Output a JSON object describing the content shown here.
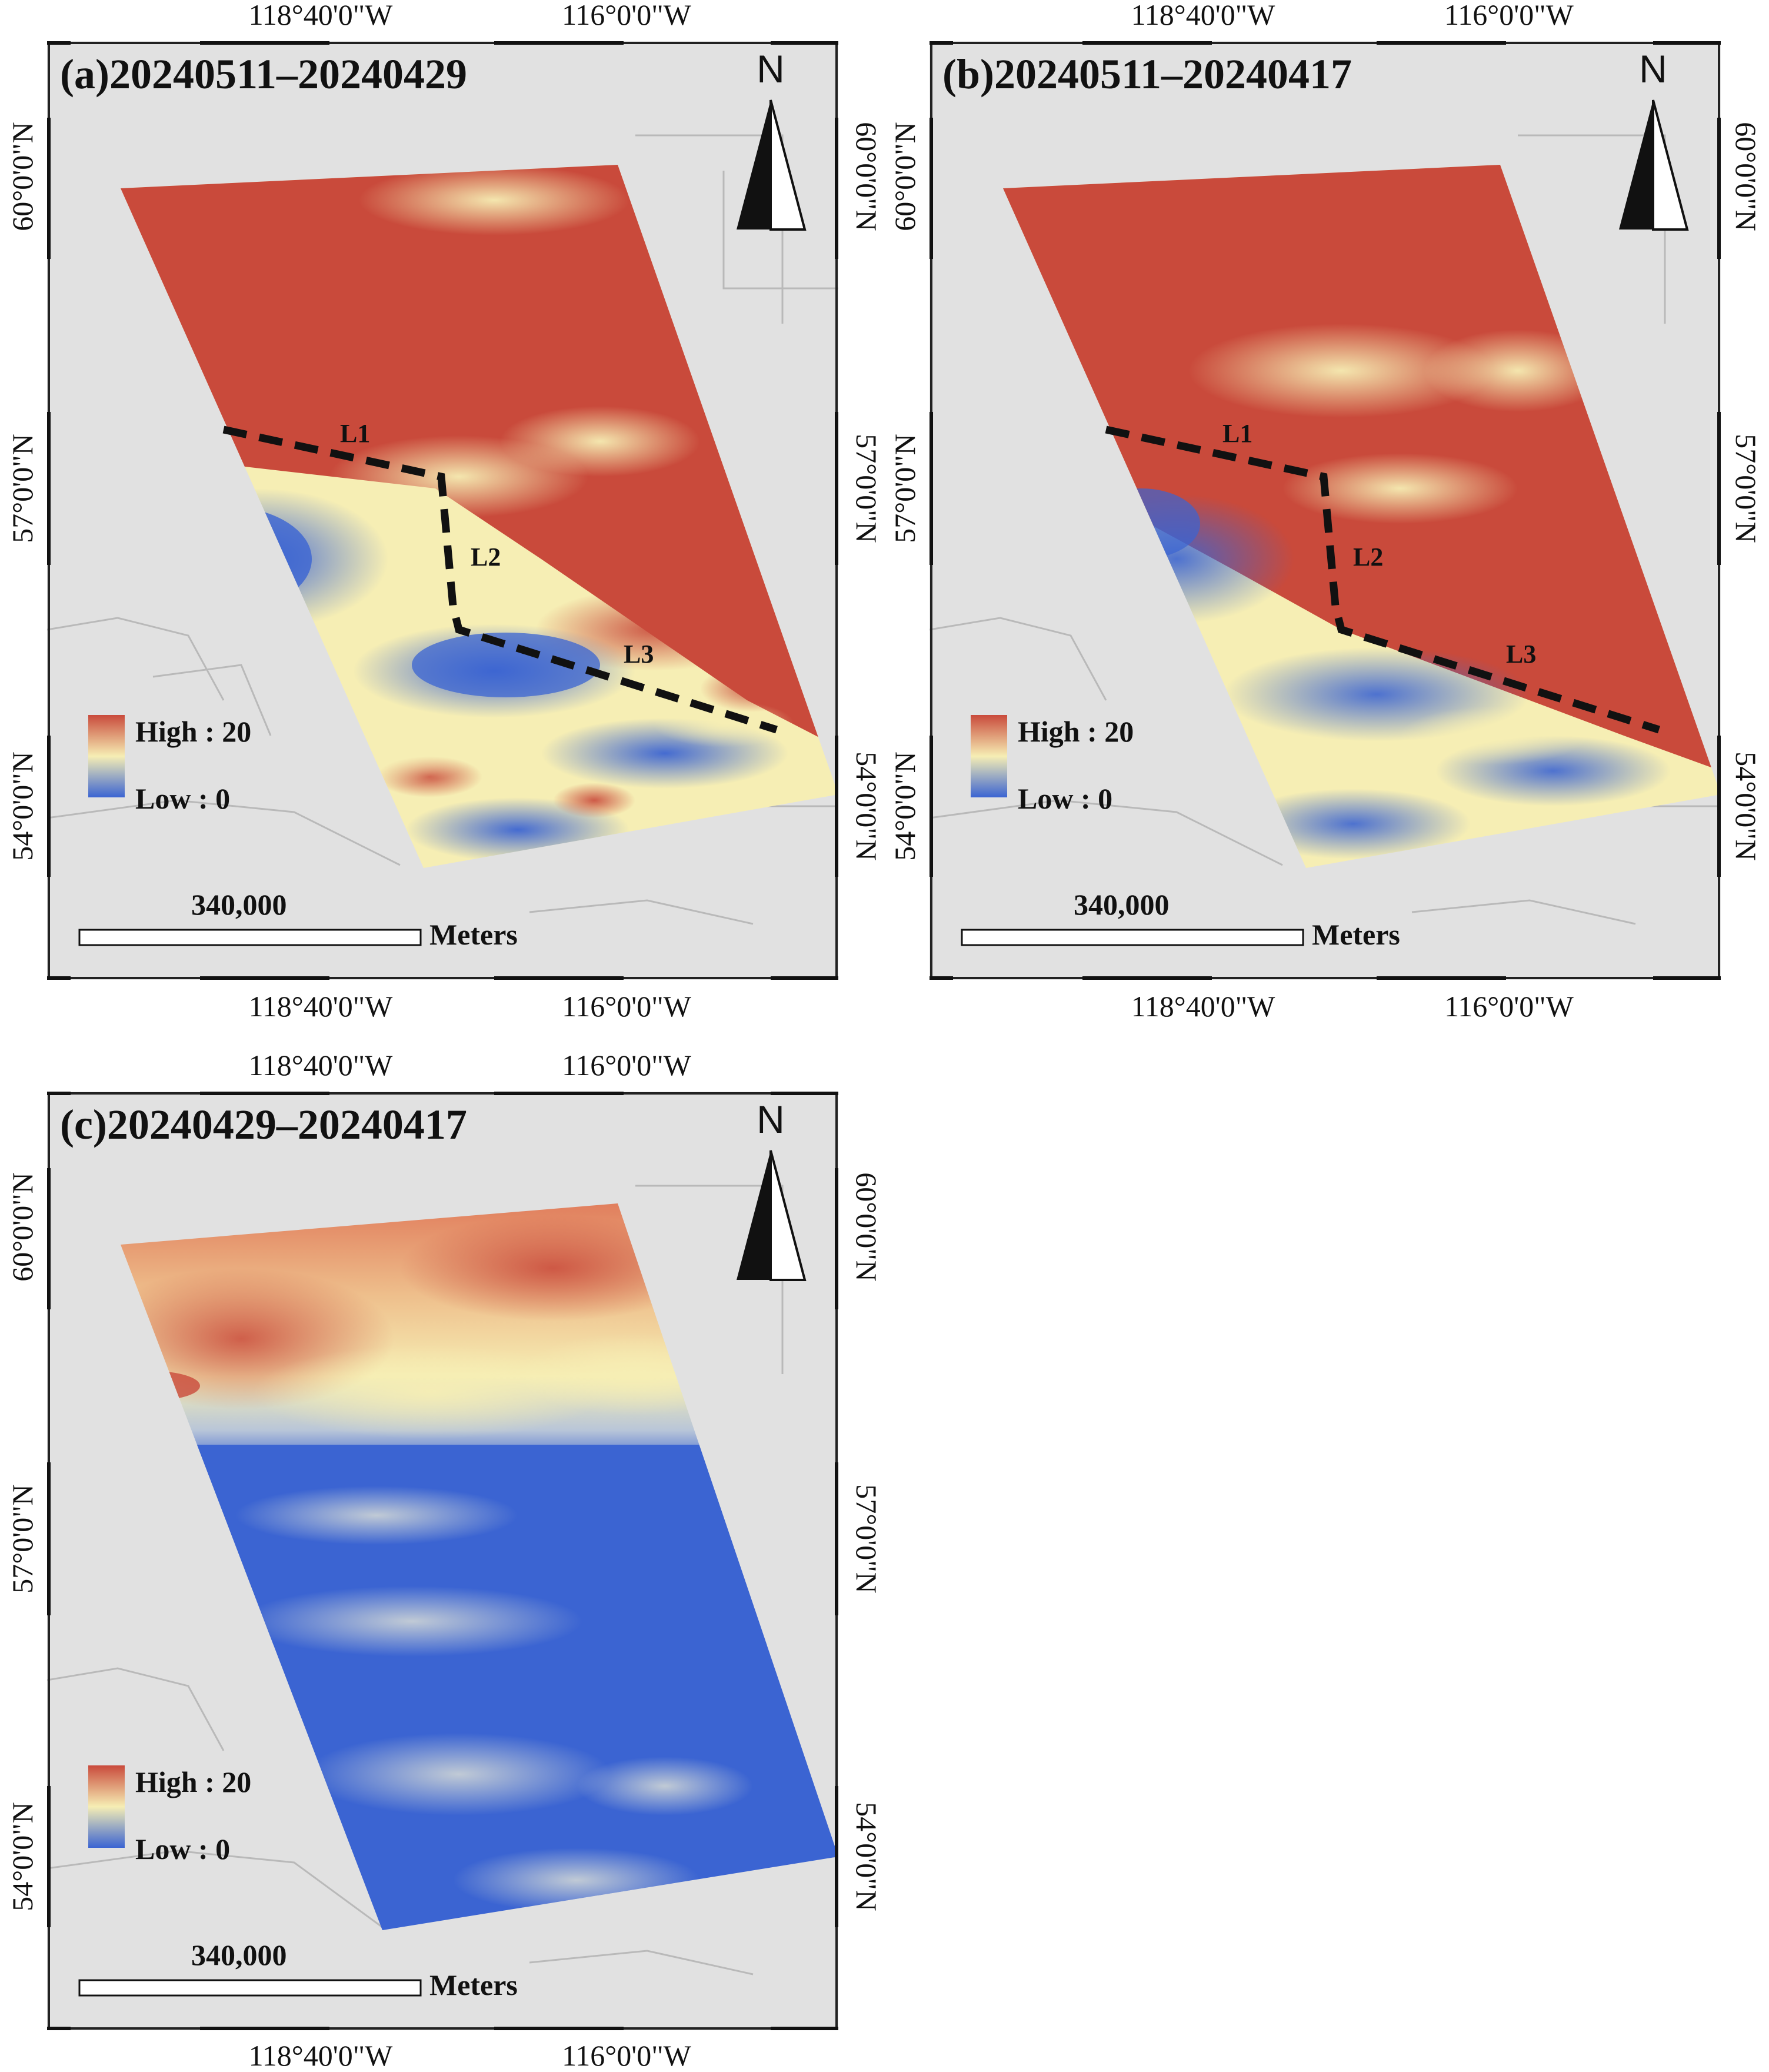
{
  "colors": {
    "high": "#c94a3b",
    "mid": "#f6eeb4",
    "low": "#3b64d2",
    "basemap": "#e1e1e1",
    "boundary": "#b9b9b9",
    "fault_line": "#111111"
  },
  "axis_labels": {
    "lon_west": "118°40'0\"W",
    "lon_east": "116°0'0\"W",
    "lat_north": "60°0'0\"N",
    "lat_mid": "57°0'0\"N",
    "lat_south": "54°0'0\"N"
  },
  "north_arrow": {
    "letter": "N",
    "icon": "north-arrow-icon"
  },
  "legend": {
    "high": "High : 20",
    "low": "Low : 0"
  },
  "scale_bar": {
    "distance": "340,000",
    "unit": "Meters"
  },
  "line_labels": [
    "L1",
    "L2",
    "L3"
  ],
  "panels": [
    {
      "id": "a",
      "title": "(a)20240511–20240429",
      "show_lines": true,
      "pattern": "a"
    },
    {
      "id": "b",
      "title": "(b)20240511–20240417",
      "show_lines": true,
      "pattern": "b"
    },
    {
      "id": "c",
      "title": "(c)20240429–20240417",
      "show_lines": false,
      "pattern": "c"
    }
  ]
}
